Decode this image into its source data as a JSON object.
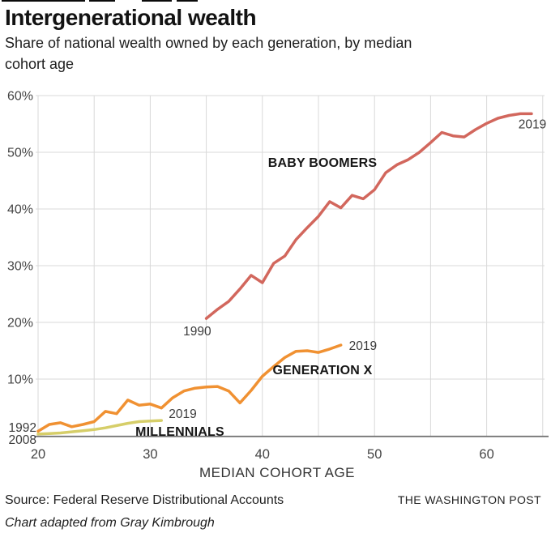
{
  "chart_data": {
    "type": "line",
    "title": "Intergenerational wealth",
    "subtitle": "Share of national wealth owned by each generation, by median cohort age",
    "xlabel": "MEDIAN COHORT AGE",
    "ylabel": "",
    "xlim": [
      20,
      65
    ],
    "ylim": [
      0,
      60
    ],
    "grid": true,
    "x_ticks": [
      20,
      30,
      40,
      50,
      60
    ],
    "x_gridline_step_years": 5,
    "y_ticks": [
      10,
      20,
      30,
      40,
      50,
      60
    ],
    "y_tick_suffix": "%",
    "series": [
      {
        "name": "BABY BOOMERS",
        "color": "#d2675d",
        "start_year_label": "1990",
        "end_year_label": "2019",
        "start_age": 35,
        "end_age": 64,
        "age_step": 1,
        "values": [
          20.7,
          22.3,
          23.7,
          25.9,
          28.3,
          27.0,
          30.4,
          31.7,
          34.6,
          36.7,
          38.7,
          41.3,
          40.2,
          42.4,
          41.8,
          43.4,
          46.4,
          47.8,
          48.7,
          50.0,
          51.7,
          53.5,
          52.9,
          52.7,
          54.0,
          55.1,
          56.0,
          56.5,
          56.8,
          56.8
        ]
      },
      {
        "name": "GENERATION X",
        "color": "#f09132",
        "start_year_label": "1992",
        "end_year_label": "2019",
        "start_age": 20,
        "end_age": 47,
        "age_step": 1,
        "values": [
          0.8,
          2.0,
          2.3,
          1.6,
          2.0,
          2.5,
          4.3,
          3.9,
          6.3,
          5.4,
          5.6,
          4.9,
          6.7,
          7.9,
          8.4,
          8.6,
          8.7,
          7.9,
          5.8,
          8.0,
          10.5,
          12.2,
          13.8,
          14.9,
          15.0,
          14.7,
          15.3,
          16.0
        ]
      },
      {
        "name": "MILLENNIALS",
        "color": "#d6ce69",
        "start_year_label": "2008",
        "end_year_label": "2019",
        "start_age": 20,
        "end_age": 31,
        "age_step": 1,
        "values": [
          0.3,
          0.4,
          0.5,
          0.7,
          0.9,
          1.1,
          1.4,
          1.8,
          2.2,
          2.5,
          2.6,
          2.7
        ]
      }
    ],
    "colors": {
      "gridline": "#d9d9d9",
      "axis_line": "#6e6e6e",
      "tick_label": "#454545",
      "annotation_year": "#3b3b3b",
      "series_label": "#161616"
    }
  },
  "footer": {
    "source": "Source: Federal Reserve Distributional Accounts",
    "brand": "THE WASHINGTON POST",
    "credit": "Chart adapted from Gray Kimbrough"
  }
}
